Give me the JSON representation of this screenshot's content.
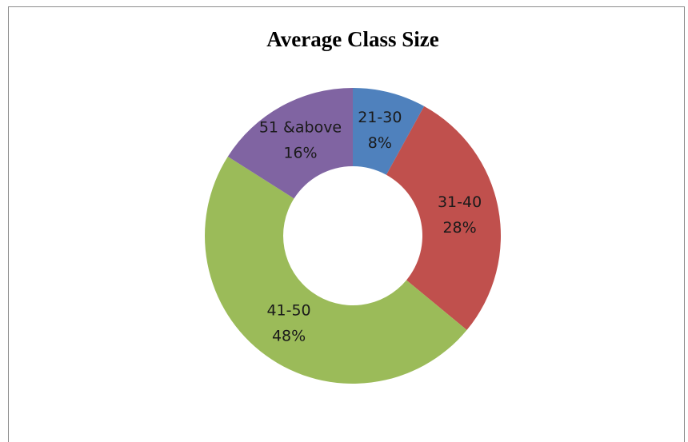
{
  "chart_data": {
    "type": "pie",
    "title": "Average Class Size",
    "categories": [
      "21-30",
      "31-40",
      "41-50",
      "51 &above"
    ],
    "values": [
      8,
      28,
      48,
      16
    ],
    "value_labels": [
      "8%",
      "28%",
      "48%",
      "16%"
    ],
    "colors": [
      "#4f81bd",
      "#c0504d",
      "#9bbb59",
      "#8064a2"
    ],
    "donut": true
  }
}
